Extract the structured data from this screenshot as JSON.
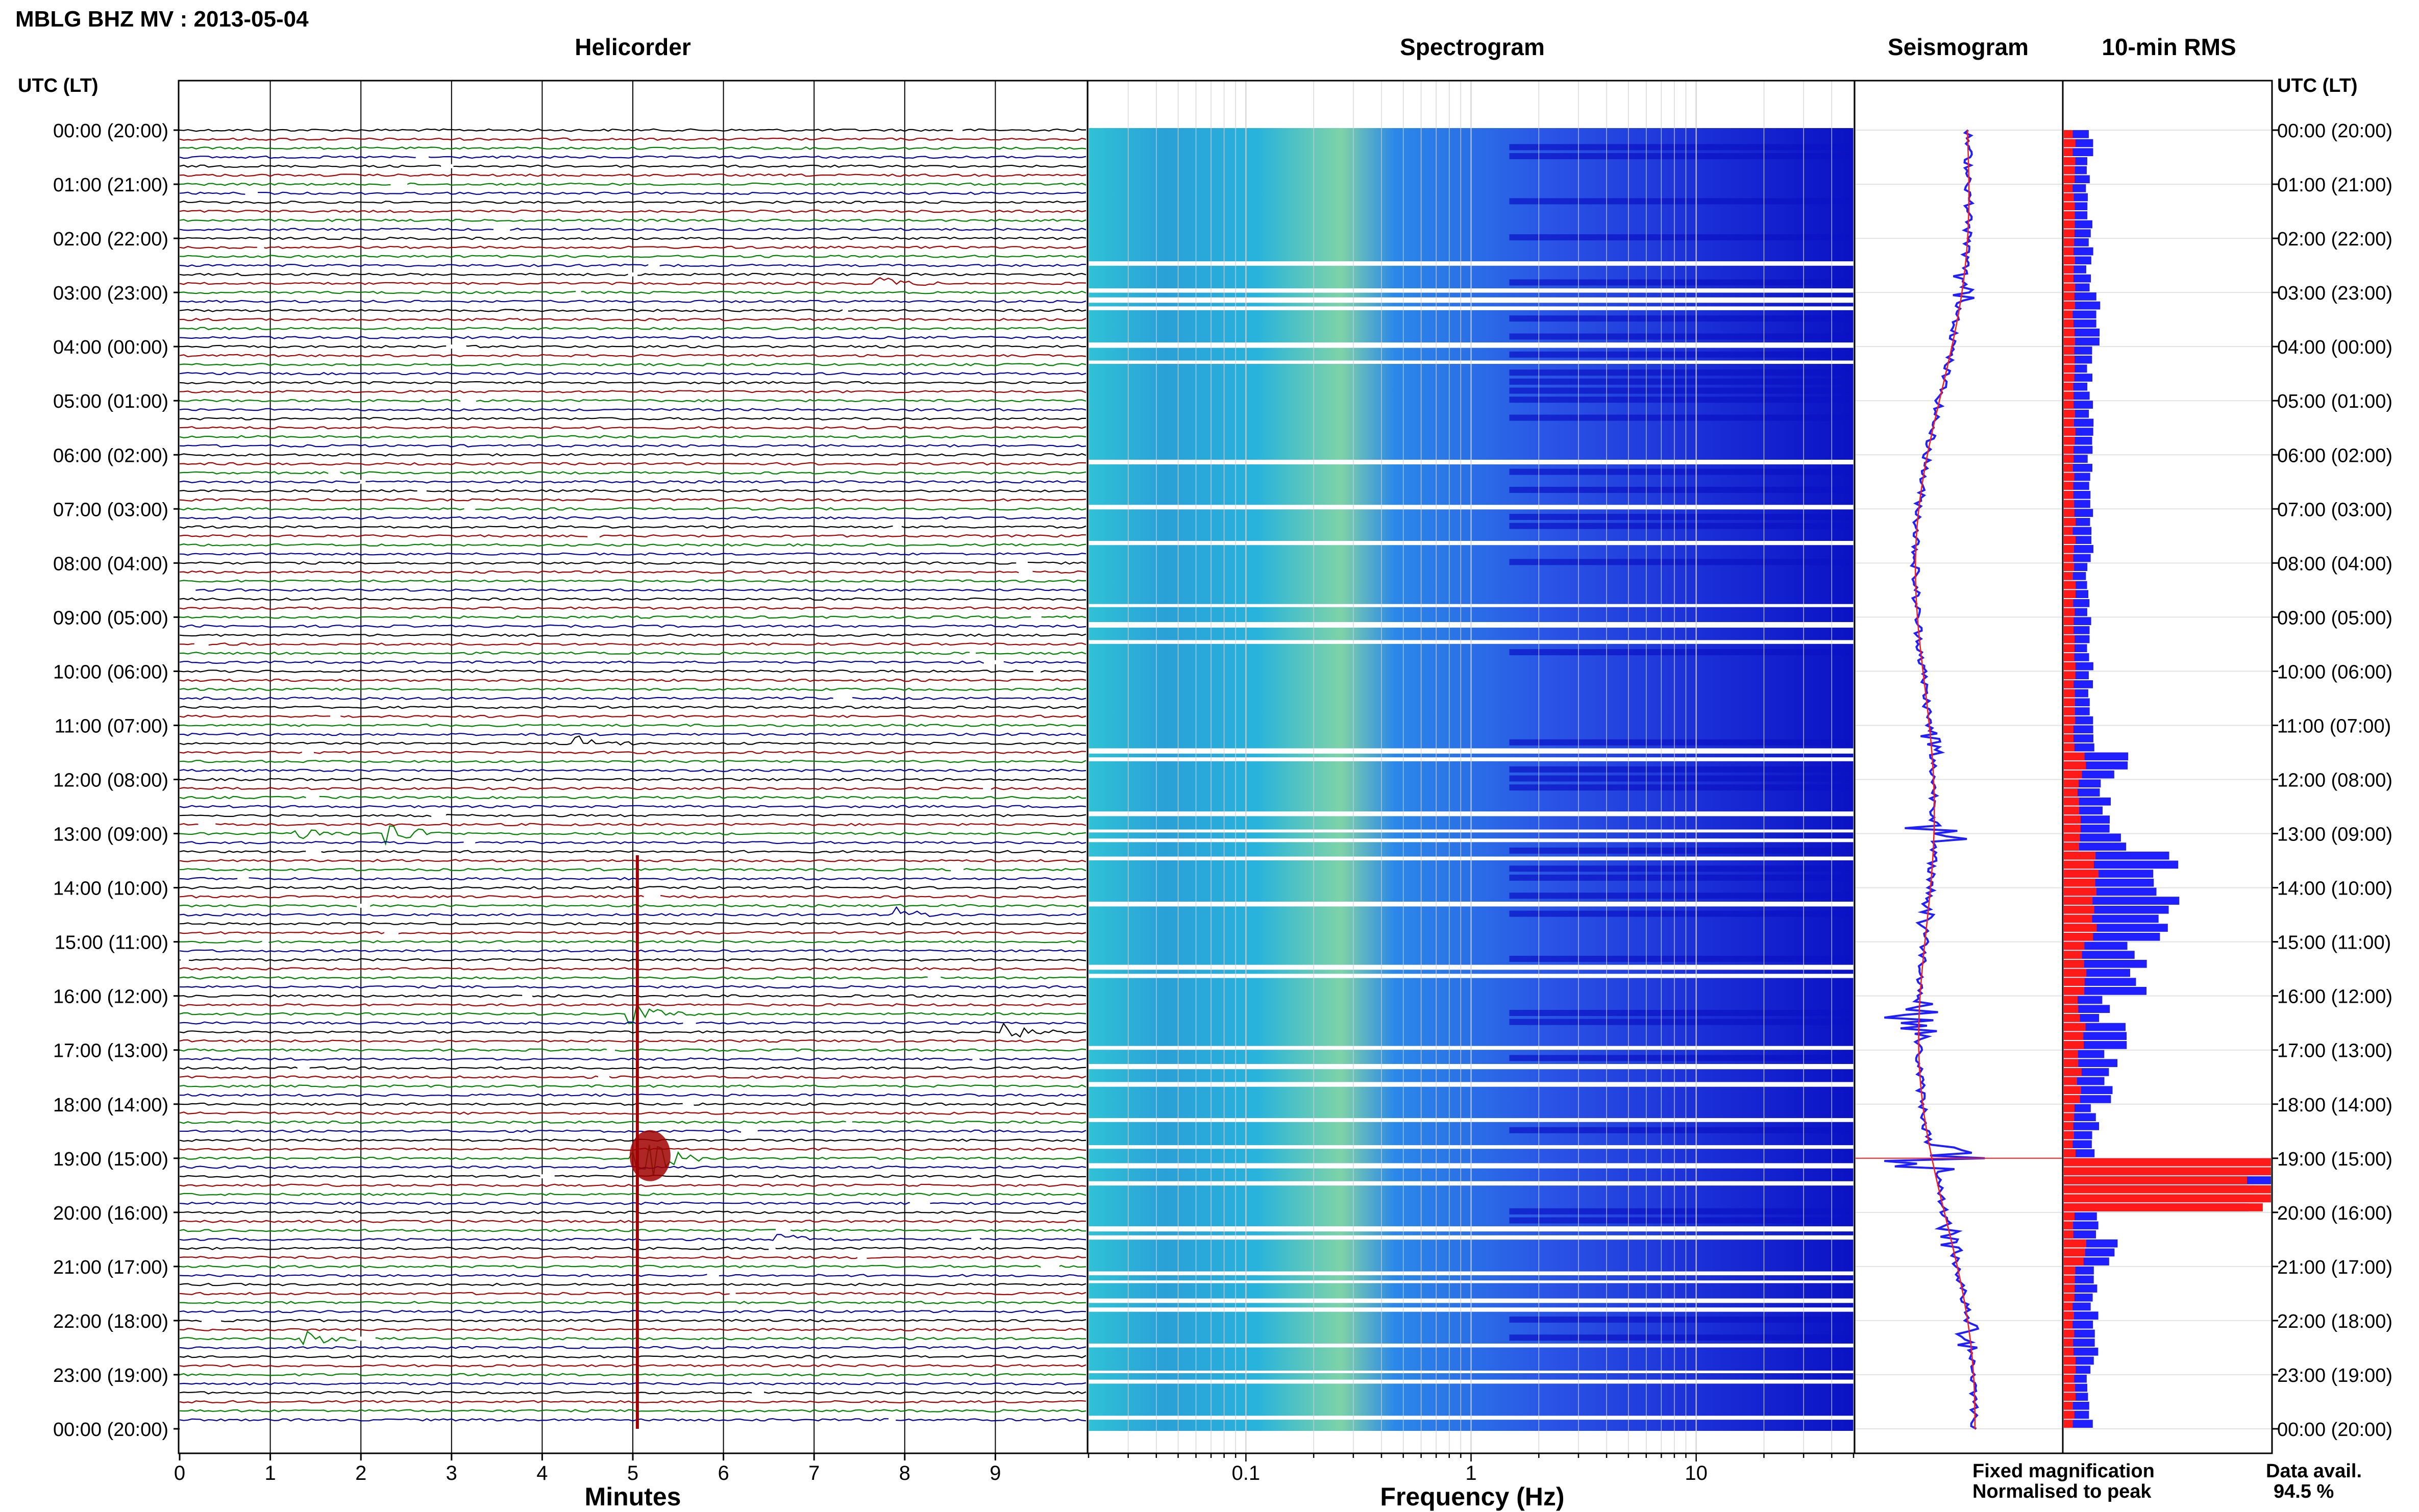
{
  "header": {
    "station_title": "MBLG BHZ MV : 2013-05-04"
  },
  "panels": {
    "helicorder_title": "Helicorder",
    "spectrogram_title": "Spectrogram",
    "seismogram_title": "Seismogram",
    "rms_title": "10-min RMS"
  },
  "time_axis": {
    "label_left": "UTC (LT)",
    "label_right": "UTC (LT)",
    "ticks": [
      "00:00 (20:00)",
      "01:00 (21:00)",
      "02:00 (22:00)",
      "03:00 (23:00)",
      "04:00 (00:00)",
      "05:00 (01:00)",
      "06:00 (02:00)",
      "07:00 (03:00)",
      "08:00 (04:00)",
      "09:00 (05:00)",
      "10:00 (06:00)",
      "11:00 (07:00)",
      "12:00 (08:00)",
      "13:00 (09:00)",
      "14:00 (10:00)",
      "15:00 (11:00)",
      "16:00 (12:00)",
      "17:00 (13:00)",
      "18:00 (14:00)",
      "19:00 (15:00)",
      "20:00 (16:00)",
      "21:00 (17:00)",
      "22:00 (18:00)",
      "23:00 (19:00)",
      "00:00 (20:00)"
    ]
  },
  "helicorder_axis": {
    "xlabel": "Minutes",
    "ticks": [
      "0",
      "1",
      "2",
      "3",
      "4",
      "5",
      "6",
      "7",
      "8",
      "9"
    ]
  },
  "spectrogram_axis": {
    "xlabel": "Frequency (Hz)",
    "ticks": [
      "0.1",
      "1",
      "10"
    ]
  },
  "legend": {
    "fixed_magnification": "Fixed magnification",
    "normalised_to_peak": "Normalised to peak",
    "fixed_color": "#1f1fff",
    "normalised_color": "#ff2020"
  },
  "data_availability": {
    "label": "Data avail.",
    "value": "94.5 %"
  },
  "colors": {
    "trace_cycle": [
      "#000000",
      "#a00000",
      "#008000",
      "#000099"
    ],
    "rms_fixed": "#1f1fff",
    "rms_normalised": "#ff1a1a"
  },
  "chart_data": {
    "type": "helicorder",
    "helicorder": {
      "xlim": [
        0,
        10
      ],
      "line_minutes": 10,
      "lines": 144,
      "events": [
        {
          "hour": 13.0,
          "minute": 2.3,
          "amplitude": 4
        },
        {
          "hour": 13.0,
          "minute": 1.3,
          "amplitude": 2
        },
        {
          "hour": 11.3,
          "minute": 4.4,
          "amplitude": 2
        },
        {
          "hour": 14.5,
          "minute": 7.9,
          "amplitude": 2
        },
        {
          "hour": 16.3,
          "minute": 5.0,
          "amplitude": 3
        },
        {
          "hour": 16.6,
          "minute": 9.1,
          "amplitude": 3
        },
        {
          "hour": 19.0,
          "minute": 5.05,
          "amplitude": 10
        },
        {
          "hour": 20.5,
          "minute": 6.6,
          "amplitude": 2
        },
        {
          "hour": 22.3,
          "minute": 1.4,
          "amplitude": 2
        },
        {
          "hour": 2.9,
          "minute": 7.7,
          "amplitude": 2
        }
      ]
    },
    "spectrogram": {
      "xscale": "log",
      "xlim": [
        0.02,
        50
      ]
    },
    "rms": {
      "x_hours": [
        0,
        1,
        2,
        3,
        4,
        5,
        6,
        7,
        8,
        9,
        10,
        11,
        11.5,
        12,
        13,
        13.2,
        15,
        16,
        16.5,
        17,
        18,
        19,
        20,
        20.5,
        21,
        22,
        23,
        24
      ],
      "fixed_magnification": [
        0.25,
        0.25,
        0.25,
        0.35,
        0.25,
        0.25,
        0.25,
        0.25,
        0.25,
        0.25,
        0.25,
        0.3,
        0.55,
        0.4,
        0.6,
        1.0,
        0.7,
        0.4,
        0.65,
        0.45,
        0.3,
        2.0,
        0.3,
        0.5,
        0.3,
        0.3,
        0.25,
        0.25
      ],
      "normalised_to_peak": [
        0.1,
        0.1,
        0.1,
        0.1,
        0.1,
        0.1,
        0.1,
        0.1,
        0.1,
        0.1,
        0.1,
        0.1,
        0.2,
        0.15,
        0.15,
        0.3,
        0.2,
        0.15,
        0.2,
        0.15,
        0.1,
        2.0,
        0.1,
        0.2,
        0.1,
        0.1,
        0.1,
        0.1
      ]
    }
  }
}
